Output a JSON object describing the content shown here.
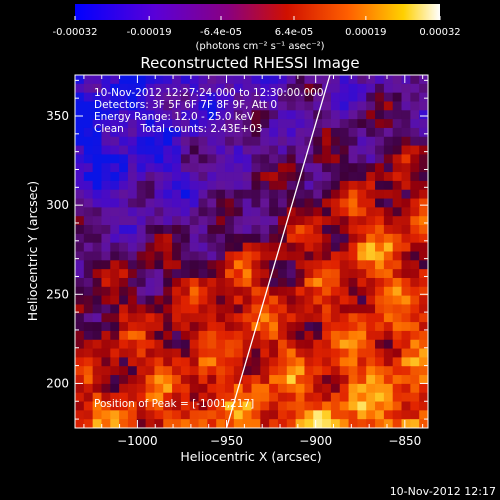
{
  "chart_data": {
    "type": "heatmap",
    "title": "Reconstructed RHESSI Image",
    "xlabel": "Heliocentric X (arcsec)",
    "ylabel": "Heliocentric Y (arcsec)",
    "xlim": [
      -1035,
      -837
    ],
    "ylim": [
      175,
      373
    ],
    "xticks": [
      -1000,
      -950,
      -900,
      -850
    ],
    "xtick_labels": [
      "−1000",
      "−950",
      "−900",
      "−850"
    ],
    "yticks": [
      200,
      250,
      300,
      350
    ],
    "ytick_labels": [
      "200",
      "250",
      "300",
      "350"
    ],
    "colorbar": {
      "range": [
        -0.00032,
        0.00032
      ],
      "tick_values": [
        -0.00032,
        -0.00019,
        -6.4e-05,
        6.4e-05,
        0.00019,
        0.00032
      ],
      "tick_labels": [
        "-0.00032",
        "-0.00019",
        "-6.4e-05",
        "6.4e-05",
        "0.00019",
        "0.00032"
      ],
      "units_label": "(photons cm⁻² s⁻¹ asec⁻²)",
      "colormap": "blue-purple-red-yellow-white"
    },
    "annotations": [
      "10-Nov-2012 12:27:24.000 to 12:30:00.000",
      "Detectors: 3F 5F 6F 7F 8F 9F, Att 0",
      "Energy Range: 12.0 - 25.0 keV",
      "Clean     Total counts: 2.43E+03"
    ],
    "peak_label": "Position of Peak = [-1001,217]",
    "limb_line": {
      "x": [
        -950,
        -892
      ],
      "y": [
        175,
        373
      ]
    }
  },
  "footer": {
    "timestamp": "10-Nov-2012 12:17"
  },
  "colors": {
    "background": "#000000",
    "text": "#ffffff",
    "limb": "#ffffff"
  }
}
